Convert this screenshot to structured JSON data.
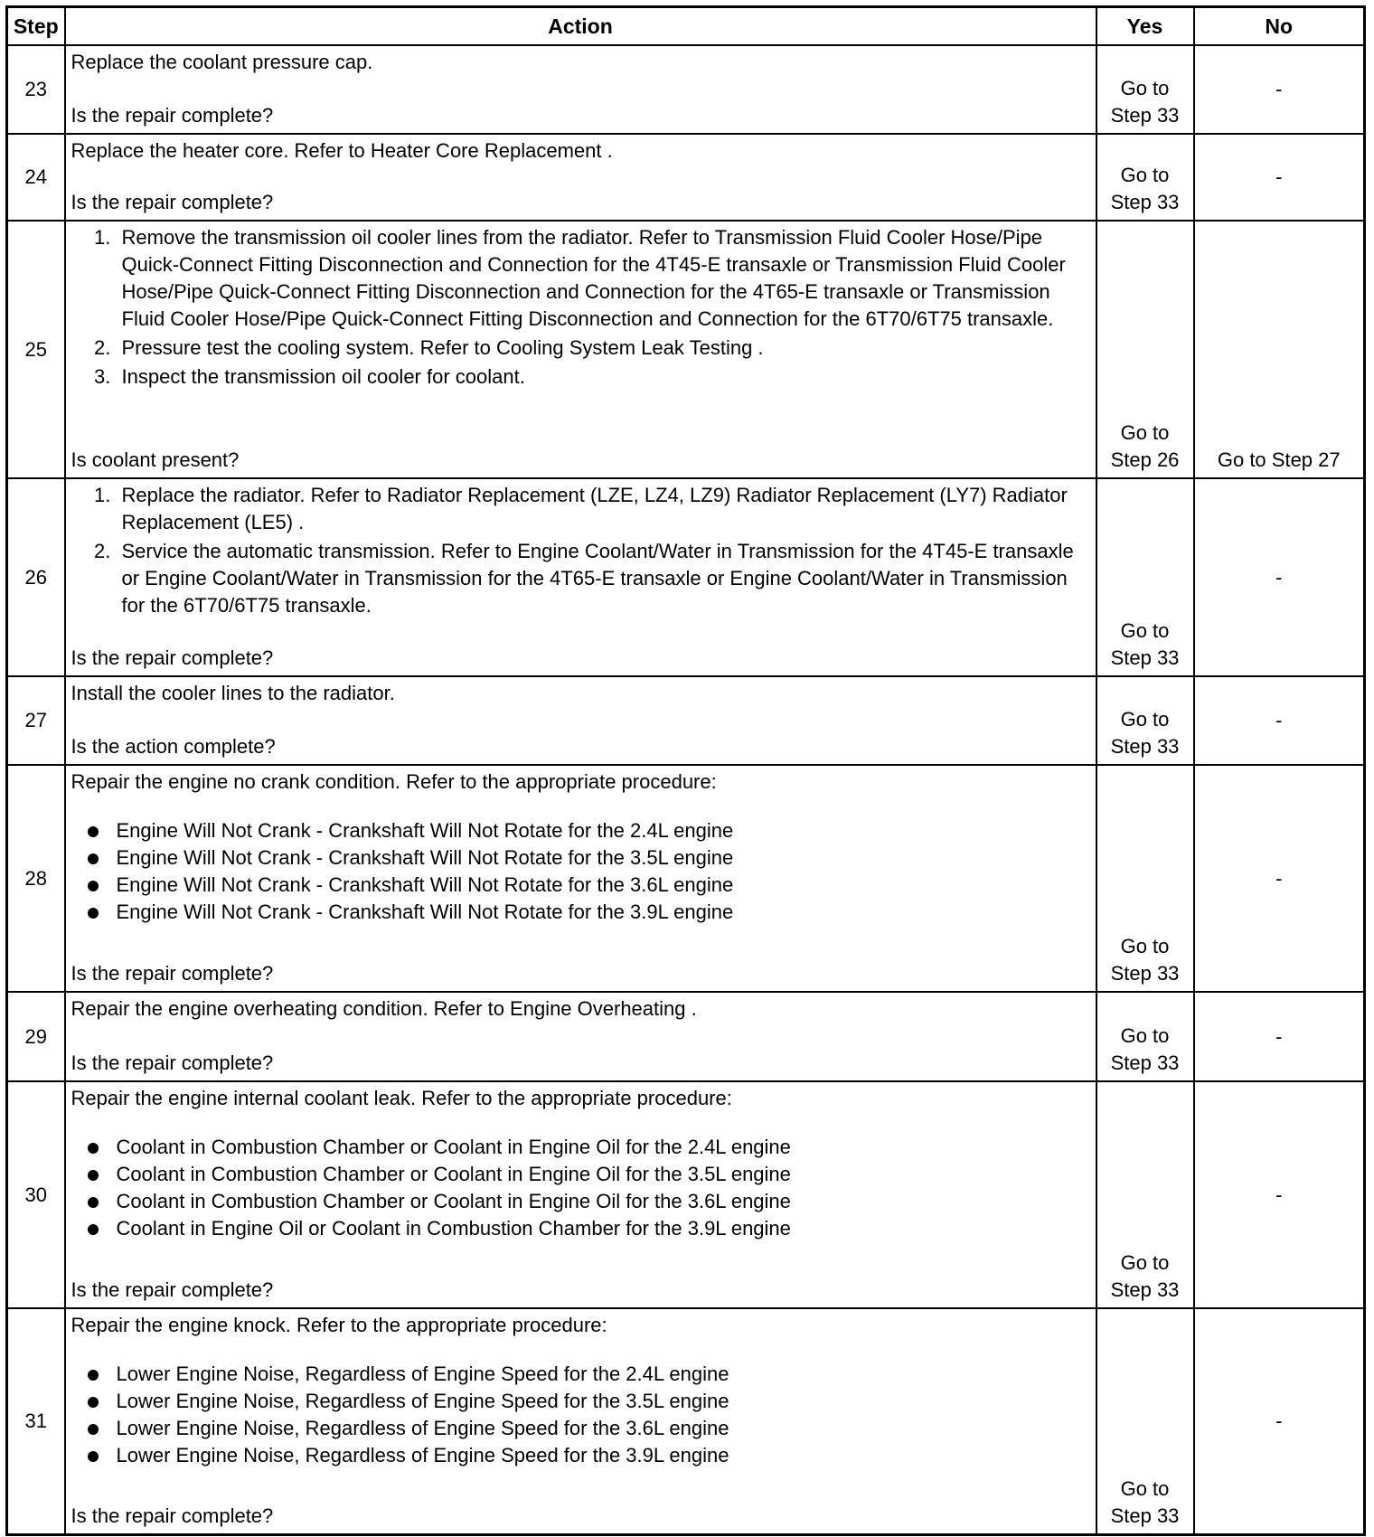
{
  "headers": {
    "step": "Step",
    "action": "Action",
    "yes": "Yes",
    "no": "No"
  },
  "rows": [
    {
      "step": "23",
      "intro": "Replace the coolant pressure cap.",
      "numbered": [],
      "bullets": [],
      "question": "Is the repair complete?",
      "yes": "Go to Step 33",
      "no": "-"
    },
    {
      "step": "24",
      "intro": "Replace the heater core. Refer to Heater Core Replacement .",
      "numbered": [],
      "bullets": [],
      "question": "Is the repair complete?",
      "yes": "Go to Step 33",
      "no": "-"
    },
    {
      "step": "25",
      "intro": "",
      "numbered": [
        "Remove the transmission oil cooler lines from the radiator. Refer to Transmission Fluid Cooler Hose/Pipe Quick-Connect Fitting Disconnection and Connection for the 4T45-E transaxle or Transmission Fluid Cooler Hose/Pipe Quick-Connect Fitting Disconnection and Connection for the 4T65-E transaxle or Transmission Fluid Cooler Hose/Pipe Quick-Connect Fitting Disconnection and Connection for the 6T70/6T75 transaxle.",
        "Pressure test the cooling system. Refer to Cooling System Leak Testing .",
        "Inspect the transmission oil cooler for coolant."
      ],
      "bullets": [],
      "question": "Is coolant present?",
      "yes": "Go to Step 26",
      "no": "Go to Step 27"
    },
    {
      "step": "26",
      "intro": "",
      "numbered": [
        "Replace the radiator. Refer to Radiator Replacement (LZE, LZ4, LZ9) Radiator Replacement (LY7) Radiator Replacement (LE5) .",
        "Service the automatic transmission. Refer to Engine Coolant/Water in Transmission for the 4T45-E transaxle or Engine Coolant/Water in Transmission for the 4T65-E transaxle or Engine Coolant/Water in Transmission for the 6T70/6T75 transaxle."
      ],
      "bullets": [],
      "question": "Is the repair complete?",
      "yes": "Go to Step 33",
      "no": "-"
    },
    {
      "step": "27",
      "intro": "Install the cooler lines to the radiator.",
      "numbered": [],
      "bullets": [],
      "question": "Is the action complete?",
      "yes": "Go to Step 33",
      "no": "-"
    },
    {
      "step": "28",
      "intro": "Repair the engine no crank condition. Refer to the appropriate procedure:",
      "numbered": [],
      "bullets": [
        "Engine Will Not Crank - Crankshaft Will Not Rotate for the 2.4L engine",
        "Engine Will Not Crank - Crankshaft Will Not Rotate for the 3.5L engine",
        "Engine Will Not Crank - Crankshaft Will Not Rotate for the 3.6L engine",
        "Engine Will Not Crank - Crankshaft Will Not Rotate for the 3.9L engine"
      ],
      "question": "Is the repair complete?",
      "yes": "Go to Step 33",
      "no": "-"
    },
    {
      "step": "29",
      "intro": "Repair the engine overheating condition. Refer to Engine Overheating .",
      "numbered": [],
      "bullets": [],
      "question": "Is the repair complete?",
      "yes": "Go to Step 33",
      "no": "-"
    },
    {
      "step": "30",
      "intro": "Repair the engine internal coolant leak. Refer to the appropriate procedure:",
      "numbered": [],
      "bullets": [
        "Coolant in Combustion Chamber or Coolant in Engine Oil for the 2.4L engine",
        "Coolant in Combustion Chamber or Coolant in Engine Oil for the 3.5L engine",
        "Coolant in Combustion Chamber or Coolant in Engine Oil for the 3.6L engine",
        "Coolant in Engine Oil or Coolant in Combustion Chamber for the 3.9L engine"
      ],
      "question": "Is the repair complete?",
      "yes": "Go to Step 33",
      "no": "-"
    },
    {
      "step": "31",
      "intro": "Repair the engine knock. Refer to the appropriate procedure:",
      "numbered": [],
      "bullets": [
        "Lower Engine Noise, Regardless of Engine Speed for the 2.4L engine",
        "Lower Engine Noise, Regardless of Engine Speed for the 3.5L engine",
        "Lower Engine Noise, Regardless of Engine Speed for the 3.6L engine",
        "Lower Engine Noise, Regardless of Engine Speed for the 3.9L engine"
      ],
      "question": "Is the repair complete?",
      "yes": "Go to Step 33",
      "no": "-"
    }
  ]
}
